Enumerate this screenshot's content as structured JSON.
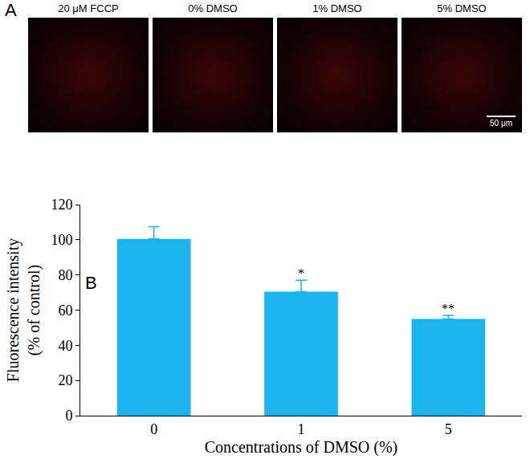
{
  "panel_a": {
    "letter": "A",
    "images": [
      "20 μM FCCP",
      "0% DMSO",
      "1% DMSO",
      "5% DMSO"
    ],
    "scale_bar": "50 μm"
  },
  "chart_data": {
    "type": "bar",
    "panel_letter": "B",
    "x_label": "Concentrations of DMSO (%)",
    "y_label": "Fluorescence intensity\n(% of control)",
    "categories": [
      "0",
      "1",
      "5"
    ],
    "values": [
      100.5,
      70.5,
      55
    ],
    "errors": [
      7,
      6.5,
      2
    ],
    "color": "#1ab4ee",
    "ylim": [
      0,
      120
    ],
    "yticks": [
      0,
      20,
      40,
      60,
      80,
      100,
      120
    ],
    "grid": false,
    "annotations": [
      {
        "category": "1",
        "text": "*"
      },
      {
        "category": "5",
        "text": "**"
      }
    ]
  }
}
